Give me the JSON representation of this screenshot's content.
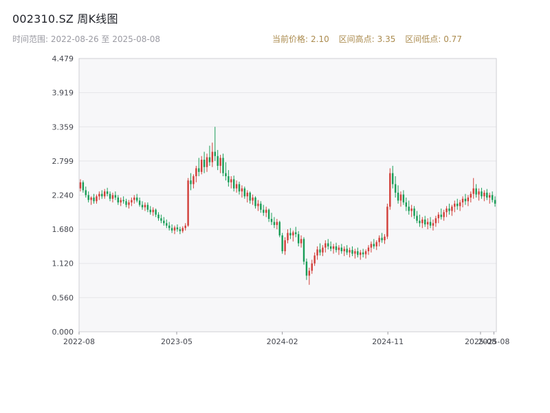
{
  "header": {
    "title": "002310.SZ 周K线图",
    "time_range": "时间范围: 2022-08-26 至 2025-08-08",
    "info": {
      "current_label": "当前价格:",
      "current_value": "2.10",
      "high_label": "区间高点:",
      "high_value": "3.35",
      "low_label": "区间低点:",
      "low_value": "0.77"
    }
  },
  "chart_data": {
    "type": "candlestick",
    "title": "002310.SZ 周K线图",
    "interval": "weekly",
    "x_range": [
      "2022-08-26",
      "2025-08-08"
    ],
    "x_ticks": [
      {
        "label": "2022-08",
        "f": 0.0
      },
      {
        "label": "2023-05",
        "f": 0.234
      },
      {
        "label": "2024-02",
        "f": 0.487
      },
      {
        "label": "2024-11",
        "f": 0.74
      },
      {
        "label": "2025-08",
        "f": 0.962
      },
      {
        "label": "2025-08",
        "f": 0.994
      }
    ],
    "y_ticks": [
      "0.000",
      "0.560",
      "1.120",
      "1.680",
      "2.240",
      "2.799",
      "3.359",
      "3.919",
      "4.479"
    ],
    "ylim": [
      0,
      4.479
    ],
    "up_color": "#d23f3a",
    "down_color": "#199d57",
    "grid": true,
    "plot_bg": "#f7f7f9",
    "grid_color": "#e6e6e9",
    "border_color": "#cfcfd4",
    "axis_text_color": "#45474f",
    "candles": [
      [
        2.35,
        2.5,
        2.3,
        2.45
      ],
      [
        2.45,
        2.48,
        2.28,
        2.32
      ],
      [
        2.32,
        2.38,
        2.2,
        2.24
      ],
      [
        2.24,
        2.3,
        2.12,
        2.16
      ],
      [
        2.16,
        2.22,
        2.08,
        2.2
      ],
      [
        2.2,
        2.26,
        2.1,
        2.14
      ],
      [
        2.14,
        2.25,
        2.1,
        2.22
      ],
      [
        2.22,
        2.3,
        2.16,
        2.26
      ],
      [
        2.26,
        2.32,
        2.18,
        2.22
      ],
      [
        2.22,
        2.34,
        2.18,
        2.3
      ],
      [
        2.3,
        2.36,
        2.22,
        2.26
      ],
      [
        2.26,
        2.3,
        2.14,
        2.18
      ],
      [
        2.18,
        2.28,
        2.12,
        2.24
      ],
      [
        2.24,
        2.3,
        2.16,
        2.2
      ],
      [
        2.2,
        2.24,
        2.08,
        2.12
      ],
      [
        2.12,
        2.2,
        2.06,
        2.16
      ],
      [
        2.16,
        2.22,
        2.1,
        2.14
      ],
      [
        2.14,
        2.18,
        2.04,
        2.08
      ],
      [
        2.08,
        2.16,
        2.02,
        2.12
      ],
      [
        2.12,
        2.2,
        2.06,
        2.16
      ],
      [
        2.16,
        2.24,
        2.1,
        2.2
      ],
      [
        2.2,
        2.26,
        2.12,
        2.15
      ],
      [
        2.15,
        2.2,
        2.05,
        2.08
      ],
      [
        2.08,
        2.14,
        2.0,
        2.04
      ],
      [
        2.04,
        2.12,
        1.98,
        2.08
      ],
      [
        2.08,
        2.12,
        1.96,
        2.0
      ],
      [
        2.0,
        2.06,
        1.92,
        1.96
      ],
      [
        1.96,
        2.04,
        1.9,
        2.0
      ],
      [
        2.0,
        2.02,
        1.88,
        1.92
      ],
      [
        1.92,
        1.96,
        1.82,
        1.86
      ],
      [
        1.86,
        1.92,
        1.78,
        1.82
      ],
      [
        1.82,
        1.88,
        1.74,
        1.78
      ],
      [
        1.78,
        1.84,
        1.7,
        1.74
      ],
      [
        1.74,
        1.8,
        1.66,
        1.7
      ],
      [
        1.7,
        1.76,
        1.62,
        1.66
      ],
      [
        1.66,
        1.74,
        1.6,
        1.71
      ],
      [
        1.71,
        1.76,
        1.64,
        1.68
      ],
      [
        1.68,
        1.72,
        1.6,
        1.65
      ],
      [
        1.65,
        1.73,
        1.62,
        1.7
      ],
      [
        1.7,
        1.78,
        1.66,
        1.74
      ],
      [
        1.74,
        2.52,
        1.72,
        2.48
      ],
      [
        2.48,
        2.6,
        2.32,
        2.42
      ],
      [
        2.42,
        2.58,
        2.35,
        2.55
      ],
      [
        2.55,
        2.72,
        2.45,
        2.68
      ],
      [
        2.68,
        2.85,
        2.55,
        2.62
      ],
      [
        2.62,
        2.88,
        2.58,
        2.82
      ],
      [
        2.82,
        2.95,
        2.6,
        2.7
      ],
      [
        2.7,
        2.92,
        2.62,
        2.86
      ],
      [
        2.86,
        3.05,
        2.72,
        2.78
      ],
      [
        2.78,
        3.1,
        2.7,
        2.95
      ],
      [
        2.95,
        3.359,
        2.8,
        2.88
      ],
      [
        2.88,
        2.98,
        2.65,
        2.72
      ],
      [
        2.72,
        2.9,
        2.6,
        2.85
      ],
      [
        2.85,
        2.92,
        2.55,
        2.6
      ],
      [
        2.6,
        2.78,
        2.48,
        2.55
      ],
      [
        2.55,
        2.65,
        2.38,
        2.45
      ],
      [
        2.45,
        2.55,
        2.35,
        2.5
      ],
      [
        2.5,
        2.56,
        2.3,
        2.35
      ],
      [
        2.35,
        2.48,
        2.28,
        2.42
      ],
      [
        2.42,
        2.46,
        2.25,
        2.3
      ],
      [
        2.3,
        2.4,
        2.2,
        2.35
      ],
      [
        2.35,
        2.38,
        2.18,
        2.22
      ],
      [
        2.22,
        2.32,
        2.12,
        2.28
      ],
      [
        2.28,
        2.3,
        2.1,
        2.15
      ],
      [
        2.15,
        2.25,
        2.08,
        2.2
      ],
      [
        2.2,
        2.22,
        2.02,
        2.06
      ],
      [
        2.06,
        2.16,
        1.98,
        2.1
      ],
      [
        2.1,
        2.14,
        1.95,
        2.0
      ],
      [
        2.0,
        2.08,
        1.9,
        1.95
      ],
      [
        1.95,
        2.05,
        1.88,
        2.0
      ],
      [
        2.0,
        2.02,
        1.8,
        1.85
      ],
      [
        1.85,
        1.95,
        1.75,
        1.8
      ],
      [
        1.8,
        1.88,
        1.7,
        1.75
      ],
      [
        1.75,
        1.85,
        1.68,
        1.8
      ],
      [
        1.8,
        1.82,
        1.55,
        1.58
      ],
      [
        1.58,
        1.62,
        1.28,
        1.32
      ],
      [
        1.32,
        1.55,
        1.26,
        1.5
      ],
      [
        1.5,
        1.68,
        1.45,
        1.62
      ],
      [
        1.62,
        1.7,
        1.52,
        1.58
      ],
      [
        1.58,
        1.66,
        1.48,
        1.63
      ],
      [
        1.63,
        1.72,
        1.55,
        1.6
      ],
      [
        1.6,
        1.65,
        1.4,
        1.45
      ],
      [
        1.45,
        1.58,
        1.38,
        1.52
      ],
      [
        1.52,
        1.55,
        1.1,
        1.15
      ],
      [
        1.15,
        1.2,
        0.85,
        0.92
      ],
      [
        0.92,
        1.05,
        0.77,
        1.0
      ],
      [
        1.0,
        1.18,
        0.95,
        1.12
      ],
      [
        1.12,
        1.3,
        1.08,
        1.25
      ],
      [
        1.25,
        1.4,
        1.18,
        1.35
      ],
      [
        1.35,
        1.45,
        1.25,
        1.3
      ],
      [
        1.3,
        1.42,
        1.24,
        1.38
      ],
      [
        1.38,
        1.5,
        1.3,
        1.45
      ],
      [
        1.45,
        1.52,
        1.35,
        1.4
      ],
      [
        1.4,
        1.48,
        1.32,
        1.36
      ],
      [
        1.36,
        1.44,
        1.28,
        1.4
      ],
      [
        1.4,
        1.46,
        1.3,
        1.34
      ],
      [
        1.34,
        1.42,
        1.26,
        1.38
      ],
      [
        1.38,
        1.44,
        1.28,
        1.32
      ],
      [
        1.32,
        1.4,
        1.24,
        1.36
      ],
      [
        1.36,
        1.42,
        1.26,
        1.3
      ],
      [
        1.3,
        1.38,
        1.22,
        1.34
      ],
      [
        1.34,
        1.4,
        1.24,
        1.28
      ],
      [
        1.28,
        1.36,
        1.2,
        1.32
      ],
      [
        1.32,
        1.38,
        1.22,
        1.26
      ],
      [
        1.26,
        1.34,
        1.18,
        1.3
      ],
      [
        1.3,
        1.36,
        1.22,
        1.27
      ],
      [
        1.27,
        1.35,
        1.2,
        1.32
      ],
      [
        1.32,
        1.42,
        1.26,
        1.38
      ],
      [
        1.38,
        1.48,
        1.3,
        1.44
      ],
      [
        1.44,
        1.52,
        1.36,
        1.4
      ],
      [
        1.4,
        1.5,
        1.34,
        1.47
      ],
      [
        1.47,
        1.58,
        1.4,
        1.54
      ],
      [
        1.54,
        1.62,
        1.46,
        1.5
      ],
      [
        1.5,
        1.6,
        1.44,
        1.56
      ],
      [
        1.56,
        2.1,
        1.52,
        2.05
      ],
      [
        2.05,
        2.68,
        2.0,
        2.6
      ],
      [
        2.6,
        2.72,
        2.35,
        2.42
      ],
      [
        2.42,
        2.55,
        2.2,
        2.28
      ],
      [
        2.28,
        2.4,
        2.1,
        2.15
      ],
      [
        2.15,
        2.3,
        2.05,
        2.25
      ],
      [
        2.25,
        2.32,
        2.08,
        2.12
      ],
      [
        2.12,
        2.2,
        1.98,
        2.05
      ],
      [
        2.05,
        2.15,
        1.92,
        1.98
      ],
      [
        1.98,
        2.08,
        1.88,
        2.02
      ],
      [
        2.02,
        2.06,
        1.85,
        1.9
      ],
      [
        1.9,
        1.98,
        1.78,
        1.82
      ],
      [
        1.82,
        1.92,
        1.72,
        1.78
      ],
      [
        1.78,
        1.88,
        1.7,
        1.84
      ],
      [
        1.84,
        1.9,
        1.72,
        1.76
      ],
      [
        1.76,
        1.86,
        1.68,
        1.8
      ],
      [
        1.8,
        1.88,
        1.7,
        1.74
      ],
      [
        1.74,
        1.84,
        1.66,
        1.78
      ],
      [
        1.78,
        1.9,
        1.72,
        1.86
      ],
      [
        1.86,
        1.96,
        1.78,
        1.92
      ],
      [
        1.92,
        2.02,
        1.84,
        1.88
      ],
      [
        1.88,
        2.0,
        1.82,
        1.96
      ],
      [
        1.96,
        2.06,
        1.88,
        2.02
      ],
      [
        2.02,
        2.1,
        1.92,
        1.98
      ],
      [
        1.98,
        2.08,
        1.9,
        2.05
      ],
      [
        2.05,
        2.15,
        1.96,
        2.1
      ],
      [
        2.1,
        2.18,
        2.0,
        2.06
      ],
      [
        2.06,
        2.16,
        1.98,
        2.12
      ],
      [
        2.12,
        2.22,
        2.04,
        2.18
      ],
      [
        2.18,
        2.26,
        2.08,
        2.14
      ],
      [
        2.14,
        2.24,
        2.06,
        2.2
      ],
      [
        2.2,
        2.3,
        2.12,
        2.26
      ],
      [
        2.26,
        2.52,
        2.18,
        2.35
      ],
      [
        2.35,
        2.42,
        2.2,
        2.25
      ],
      [
        2.25,
        2.35,
        2.15,
        2.3
      ],
      [
        2.3,
        2.36,
        2.18,
        2.22
      ],
      [
        2.22,
        2.32,
        2.14,
        2.28
      ],
      [
        2.28,
        2.34,
        2.16,
        2.2
      ],
      [
        2.2,
        2.28,
        2.1,
        2.24
      ],
      [
        2.24,
        2.3,
        2.12,
        2.16
      ],
      [
        2.16,
        2.22,
        2.05,
        2.1
      ]
    ]
  }
}
